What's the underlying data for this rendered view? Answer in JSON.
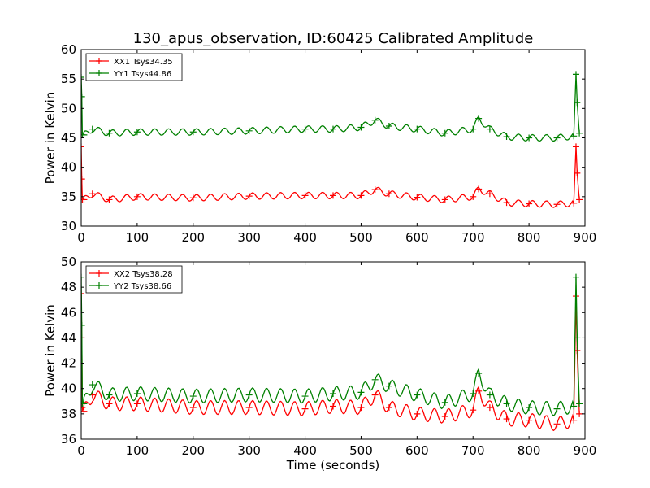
{
  "title": "130_apus_observation, ID:60425 Calibrated Amplitude",
  "chart_data": [
    {
      "type": "line",
      "ylabel": "Power in Kelvin",
      "xlabel": "",
      "xlim": [
        0,
        900
      ],
      "ylim": [
        30,
        60
      ],
      "xticks": [
        0,
        100,
        200,
        300,
        400,
        500,
        600,
        700,
        800,
        900
      ],
      "yticks": [
        30,
        35,
        40,
        45,
        50,
        55,
        60
      ],
      "legend": "top-left",
      "series": [
        {
          "name": "XX1 Tsys34.35",
          "color": "#ff0000",
          "x": [
            0,
            1,
            2,
            5,
            20,
            50,
            100,
            200,
            300,
            400,
            450,
            500,
            525,
            550,
            600,
            650,
            700,
            710,
            730,
            760,
            800,
            850,
            880,
            884,
            886,
            890
          ],
          "y": [
            43.5,
            38,
            34.5,
            34.5,
            35.5,
            34.5,
            35.0,
            34.8,
            35.1,
            35.2,
            35.2,
            35.2,
            36.2,
            35.5,
            34.9,
            34.5,
            35.0,
            36.3,
            35.5,
            34.0,
            33.8,
            33.7,
            33.9,
            43.5,
            39,
            34.5
          ]
        },
        {
          "name": "YY1 Tsys44.86",
          "color": "#008000",
          "x": [
            0,
            1,
            2,
            5,
            20,
            50,
            100,
            200,
            300,
            400,
            450,
            500,
            525,
            550,
            600,
            650,
            700,
            710,
            730,
            760,
            800,
            850,
            880,
            884,
            886,
            890
          ],
          "y": [
            55.3,
            52,
            45.5,
            45.5,
            46.5,
            45.8,
            46.0,
            46.0,
            46.2,
            46.5,
            46.5,
            46.8,
            48.0,
            47.0,
            46.5,
            45.8,
            46.5,
            48.3,
            46.5,
            45.2,
            45.0,
            45.0,
            45.3,
            55.8,
            51,
            45.8
          ]
        }
      ]
    },
    {
      "type": "line",
      "ylabel": "Power in Kelvin",
      "xlabel": "Time (seconds)",
      "xlim": [
        0,
        900
      ],
      "ylim": [
        36,
        50
      ],
      "xticks": [
        0,
        100,
        200,
        300,
        400,
        500,
        600,
        700,
        800,
        900
      ],
      "yticks": [
        36,
        38,
        40,
        42,
        44,
        46,
        48,
        50
      ],
      "legend": "top-left",
      "series": [
        {
          "name": "XX2 Tsys38.28",
          "color": "#ff0000",
          "x": [
            0,
            1,
            2,
            5,
            20,
            50,
            100,
            200,
            300,
            400,
            450,
            500,
            525,
            550,
            600,
            650,
            700,
            710,
            730,
            760,
            800,
            850,
            880,
            884,
            886,
            890
          ],
          "y": [
            47.5,
            44,
            38.5,
            38.2,
            39.5,
            38.8,
            38.8,
            38.5,
            38.5,
            38.4,
            38.6,
            38.5,
            39.5,
            38.5,
            38.0,
            37.8,
            38.3,
            39.8,
            38.5,
            37.6,
            37.5,
            37.2,
            37.5,
            47.3,
            43,
            38.0
          ]
        },
        {
          "name": "YY2 Tsys38.66",
          "color": "#008000",
          "x": [
            0,
            1,
            2,
            5,
            20,
            50,
            100,
            200,
            300,
            400,
            450,
            500,
            525,
            550,
            600,
            650,
            700,
            710,
            730,
            760,
            800,
            850,
            880,
            884,
            886,
            890
          ],
          "y": [
            48.8,
            45,
            38.8,
            38.8,
            40.3,
            39.5,
            39.6,
            39.4,
            39.5,
            39.4,
            39.6,
            39.7,
            40.7,
            40.2,
            39.5,
            38.9,
            39.6,
            41.2,
            39.5,
            38.8,
            38.5,
            38.4,
            38.6,
            48.8,
            44,
            38.8
          ]
        }
      ]
    }
  ]
}
